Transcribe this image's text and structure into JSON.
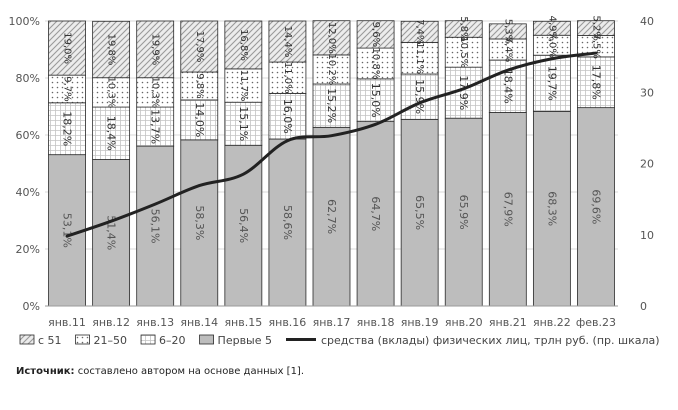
{
  "chart_data": {
    "type": "bar",
    "stacked": true,
    "categories": [
      "янв.11",
      "янв.12",
      "янв.13",
      "янв.14",
      "янв.15",
      "янв.16",
      "янв.17",
      "янв.18",
      "янв.19",
      "янв.20",
      "янв.21",
      "янв.22",
      "фев.23"
    ],
    "series": [
      {
        "name": "Первые 5",
        "color": "#bdbdbd",
        "pattern": "solid",
        "values": [
          53.1,
          51.4,
          56.1,
          58.3,
          56.4,
          58.6,
          62.7,
          64.7,
          65.5,
          65.9,
          67.9,
          68.3,
          69.6
        ],
        "labels": [
          "53,1%",
          "51,4%",
          "56,1%",
          "58,3%",
          "56,4%",
          "58,6%",
          "62,7%",
          "64,7%",
          "65,5%",
          "65,9%",
          "67,9%",
          "68,3%",
          "69,6%"
        ]
      },
      {
        "name": "6–20",
        "color": "#ffffff",
        "pattern": "grid",
        "values": [
          18.2,
          18.4,
          13.7,
          14.0,
          15.1,
          16.0,
          15.2,
          15.0,
          15.9,
          17.9,
          18.4,
          19.7,
          17.8
        ],
        "labels": [
          "18,2%",
          "18,4%",
          "13,7%",
          "14,0%",
          "15,1%",
          "16,0%",
          "15,2%",
          "15,0%",
          "15,9%",
          "17,9%",
          "18,4%",
          "19,7%",
          "17,8%"
        ]
      },
      {
        "name": "21–50",
        "color": "#ffffff",
        "pattern": "dots",
        "values": [
          9.7,
          10.3,
          10.3,
          9.8,
          11.7,
          11.0,
          10.2,
          10.8,
          11.1,
          10.5,
          7.4,
          7.0,
          7.5
        ],
        "labels": [
          "9,7%",
          "10,3%",
          "10,3%",
          "9,8%",
          "11,7%",
          "11,0%",
          "10,2%",
          "10,8%",
          "11,1%",
          "10,5%",
          "7,4%",
          "7,0%",
          "7,5%"
        ]
      },
      {
        "name": "с 51",
        "color": "#e6e6e6",
        "pattern": "hatch",
        "values": [
          19.0,
          19.8,
          19.9,
          17.9,
          16.8,
          14.4,
          12.0,
          9.6,
          7.4,
          5.8,
          5.3,
          4.9,
          5.2
        ],
        "labels": [
          "19,0%",
          "19,8%",
          "19,9%",
          "17,9%",
          "16,8%",
          "14,4%",
          "12,0%",
          "9,6%",
          "7,4%",
          "5,8%",
          "5,3%",
          "4,9%",
          "5,2%"
        ]
      }
    ],
    "line_series": {
      "name": "средства (вклады) физических лиц, трлн руб. (пр. шкала)",
      "axis": "right",
      "color": "#222222",
      "values": [
        9.8,
        11.9,
        14.3,
        16.9,
        18.5,
        23.2,
        23.9,
        25.5,
        28.5,
        30.5,
        33.1,
        34.7,
        35.5
      ]
    },
    "left_axis": {
      "ylim": [
        0,
        100
      ],
      "ticks": [
        "0%",
        "20%",
        "40%",
        "60%",
        "80%",
        "100%"
      ]
    },
    "right_axis": {
      "ylim": [
        0,
        40
      ],
      "ticks": [
        "0",
        "10",
        "20",
        "30",
        "40"
      ]
    },
    "legend_placement": "bottom",
    "legend_order": [
      "с 51",
      "21–50",
      "6–20",
      "Первые 5",
      "средства (вклады) физических лиц, трлн руб. (пр. шкала)"
    ]
  },
  "source": {
    "label": "Источник:",
    "text": "составлено автором на основе данных [1]."
  }
}
